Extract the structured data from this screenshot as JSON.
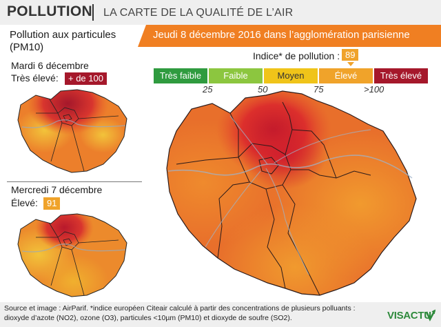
{
  "header": {
    "title": "POLLUTION",
    "subtitle": "LA CARTE DE LA QUALITÉ DE L’AIR"
  },
  "left": {
    "title_line1": "Pollution aux particules",
    "title_line2": "(PM10)",
    "day1": {
      "date": "Mardi 6 décembre",
      "level": "Très élevé:",
      "value": "+ de 100",
      "color": "#a5182b"
    },
    "day2": {
      "date": "Mercredi 7 décembre",
      "level": "Élevé:",
      "value": "91",
      "color": "#f0a32a"
    }
  },
  "banner": {
    "text": "Jeudi 8 décembre 2016 dans l’agglomération parisienne",
    "color": "#f07f22"
  },
  "index": {
    "label": "Indice* de pollution :",
    "value": "89"
  },
  "scale": {
    "categories": [
      {
        "label": "Très faible",
        "color": "#2f9b3f"
      },
      {
        "label": "Faible",
        "color": "#8cc63f"
      },
      {
        "label": "Moyen",
        "color": "#f0c419"
      },
      {
        "label": "Élevé",
        "color": "#f0a32a"
      },
      {
        "label": "Très élevé",
        "color": "#a5182b"
      }
    ],
    "ticks": [
      "25",
      "50",
      "75",
      ">100"
    ]
  },
  "footer": {
    "line1": "Source et image : AirParif. *indice européen Citeair calculé à partir des concentrations de plusieurs polluants :",
    "line2": "dioxyde d’azote (NO2), ozone (O3), particules <10µm (PM10) et dioxyde de soufre (SO2)."
  },
  "logo": {
    "text": "VISACTU",
    "icon": "visactu-logo-icon"
  }
}
